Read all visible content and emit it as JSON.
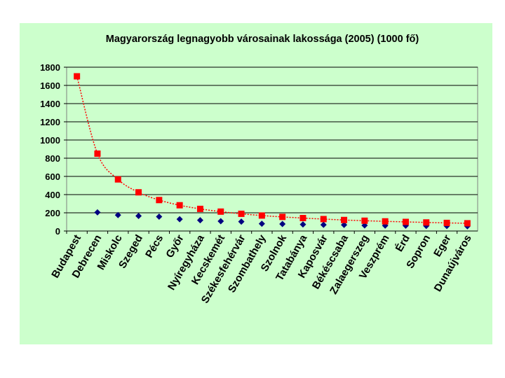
{
  "chart_data": {
    "type": "line",
    "title": "Magyarország legnagyobb városainak lakossága (2005) (1000 fő)",
    "xlabel": "",
    "ylabel": "",
    "ylim": [
      0,
      1800
    ],
    "yticks": [
      0,
      200,
      400,
      600,
      800,
      1000,
      1200,
      1400,
      1600,
      1800
    ],
    "grid": true,
    "legend": "none",
    "categories": [
      "Budapest",
      "Debrecen",
      "Miskolc",
      "Szeged",
      "Pécs",
      "Győr",
      "Nyíregyháza",
      "Kecskemét",
      "Székesfehérvár",
      "Szombathely",
      "Szolnok",
      "Tatabánya",
      "Kaposvár",
      "Békéscsaba",
      "Zalaegerszeg",
      "Veszprém",
      "Érd",
      "Sopron",
      "Eger",
      "Dunaújváros"
    ],
    "series": [
      {
        "marker": "diamond",
        "color": "#000080",
        "values": [
          null,
          205,
          175,
          165,
          158,
          130,
          118,
          108,
          103,
          80,
          77,
          72,
          68,
          67,
          62,
          60,
          59,
          56,
          55,
          52
        ]
      },
      {
        "marker": "square",
        "color": "#ff0000",
        "values": [
          1700,
          850,
          567,
          425,
          340,
          283,
          243,
          213,
          189,
          170,
          155,
          142,
          131,
          121,
          113,
          106,
          100,
          94,
          89,
          85
        ]
      }
    ],
    "trendline_color": "#ff0000"
  }
}
